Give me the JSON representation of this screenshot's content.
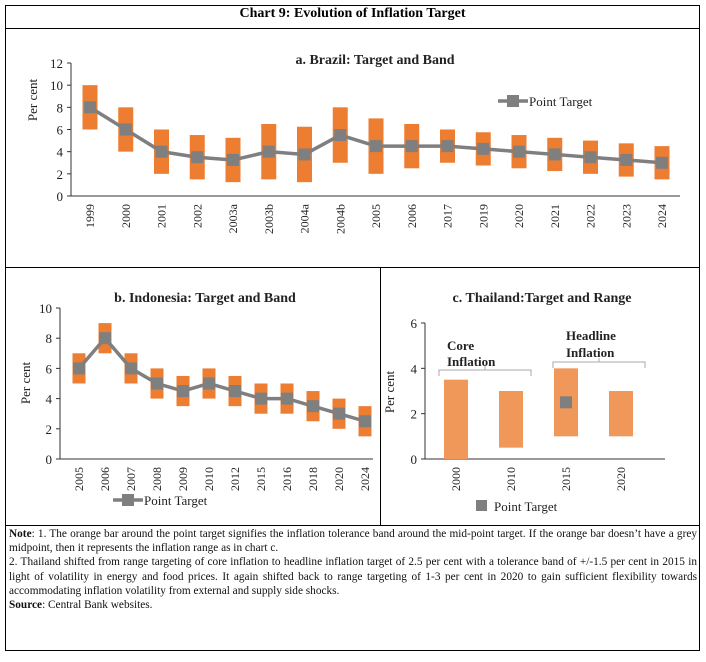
{
  "title": "Chart 9: Evolution of Inflation Target",
  "colors": {
    "band": "#ED7D31",
    "range": "#F0975A",
    "point": "#7F7F7F"
  },
  "chart_data": [
    {
      "type": "bar",
      "title": "a. Brazil: Target and Band",
      "ylabel": "Per cent",
      "ylim": [
        0,
        12
      ],
      "yticks": [
        0,
        2,
        4,
        6,
        8,
        10,
        12
      ],
      "legend": "Point Target",
      "legend_position": "top-right",
      "categories": [
        "1999",
        "2000",
        "2001",
        "2002",
        "2003a",
        "2003b",
        "2004a",
        "2004b",
        "2005",
        "2006",
        "2017",
        "2019",
        "2020",
        "2021",
        "2022",
        "2023",
        "2024"
      ],
      "band_low": [
        6,
        4,
        2,
        1.5,
        1.25,
        1.5,
        1.25,
        3,
        2,
        2.5,
        3,
        2.75,
        2.5,
        2.25,
        2,
        1.75,
        1.5
      ],
      "band_high": [
        10,
        8,
        6,
        5.5,
        5.25,
        6.5,
        6.25,
        8,
        7,
        6.5,
        6,
        5.75,
        5.5,
        5.25,
        5,
        4.75,
        4.5
      ],
      "point": [
        8,
        6,
        4,
        3.5,
        3.25,
        4,
        3.75,
        5.5,
        4.5,
        4.5,
        4.5,
        4.25,
        4,
        3.75,
        3.5,
        3.25,
        3
      ]
    },
    {
      "type": "bar",
      "title": "b. Indonesia: Target and Band",
      "ylabel": "Per cent",
      "ylim": [
        0,
        10
      ],
      "yticks": [
        0,
        2,
        4,
        6,
        8,
        10
      ],
      "legend": "Point Target",
      "legend_position": "bottom",
      "categories": [
        "2005",
        "2006",
        "2007",
        "2008",
        "2009",
        "2010",
        "2012",
        "2015",
        "2016",
        "2018",
        "2020",
        "2024"
      ],
      "band_low": [
        5,
        7,
        5,
        4,
        3.5,
        4,
        3.5,
        3,
        3,
        2.5,
        2,
        1.5
      ],
      "band_high": [
        7,
        9,
        7,
        6,
        5.5,
        6,
        5.5,
        5,
        5,
        4.5,
        4,
        3.5
      ],
      "point": [
        6,
        8,
        6,
        5,
        4.5,
        5,
        4.5,
        4,
        4,
        3.5,
        3,
        2.5
      ]
    },
    {
      "type": "bar",
      "title": "c. Thailand:Target and Range",
      "ylabel": "Per cent",
      "ylim": [
        0,
        6
      ],
      "yticks": [
        0,
        2,
        4,
        6
      ],
      "legend": "Point Target",
      "legend_position": "bottom",
      "categories": [
        "2000",
        "2010",
        "2015",
        "2020"
      ],
      "band_low": [
        0,
        0.5,
        1,
        1
      ],
      "band_high": [
        3.5,
        3,
        4,
        3
      ],
      "point": [
        null,
        null,
        2.5,
        null
      ],
      "annotations": [
        "Core Inflation",
        "Headline Inflation"
      ]
    }
  ],
  "notes": {
    "note_label": "Note",
    "note1": ": 1. The orange bar around the point target signifies the inflation tolerance band around the mid-point target. If the orange bar doesn’t have a grey midpoint, then it represents the inflation range as in chart c.",
    "note2": "2. Thailand shifted from range targeting of core inflation to headline inflation target of 2.5 per cent with a tolerance band of +/-1.5 per cent in 2015 in light of volatility in energy and food prices. It again shifted back to range targeting of 1-3 per cent in 2020 to gain sufficient flexibility towards accommodating inflation volatility from external and supply side shocks.",
    "source_label": "Source",
    "source": ": Central Bank websites."
  }
}
